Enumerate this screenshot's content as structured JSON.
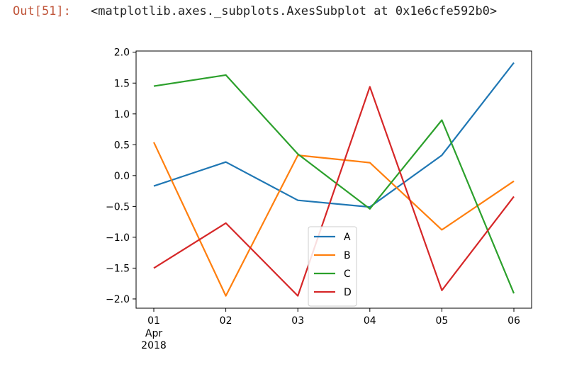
{
  "cell": {
    "prompt": "Out[51]:",
    "repr": "<matplotlib.axes._subplots.AxesSubplot at 0x1e6cfe592b0>"
  },
  "chart_data": {
    "type": "line",
    "title": "",
    "xlabel": "",
    "ylabel": "",
    "x": [
      "2018-04-01",
      "2018-04-02",
      "2018-04-03",
      "2018-04-04",
      "2018-04-05",
      "2018-04-06"
    ],
    "x_tick_labels": [
      "01",
      "02",
      "03",
      "04",
      "05",
      "06"
    ],
    "x_tick_sublabel": [
      "Apr",
      "2018"
    ],
    "ylim": [
      -2.15,
      2.02
    ],
    "y_ticks": [
      2.0,
      1.5,
      1.0,
      0.5,
      0.0,
      -0.5,
      -1.0,
      -1.5,
      -2.0
    ],
    "y_tick_labels": [
      "2.0",
      "1.5",
      "1.0",
      "0.5",
      "0.0",
      "−0.5",
      "−1.0",
      "−1.5",
      "−2.0"
    ],
    "grid": false,
    "legend_position": "lower center",
    "series": [
      {
        "name": "A",
        "color": "#1f77b4",
        "values": [
          -0.17,
          0.22,
          -0.4,
          -0.51,
          0.33,
          1.83
        ]
      },
      {
        "name": "B",
        "color": "#ff7f0e",
        "values": [
          0.54,
          -1.95,
          0.33,
          0.21,
          -0.88,
          -0.09
        ]
      },
      {
        "name": "C",
        "color": "#2ca02c",
        "values": [
          1.45,
          1.63,
          0.35,
          -0.54,
          0.9,
          -1.91
        ]
      },
      {
        "name": "D",
        "color": "#d62728",
        "values": [
          -1.5,
          -0.77,
          -1.95,
          1.44,
          -1.86,
          -0.34
        ]
      }
    ]
  }
}
